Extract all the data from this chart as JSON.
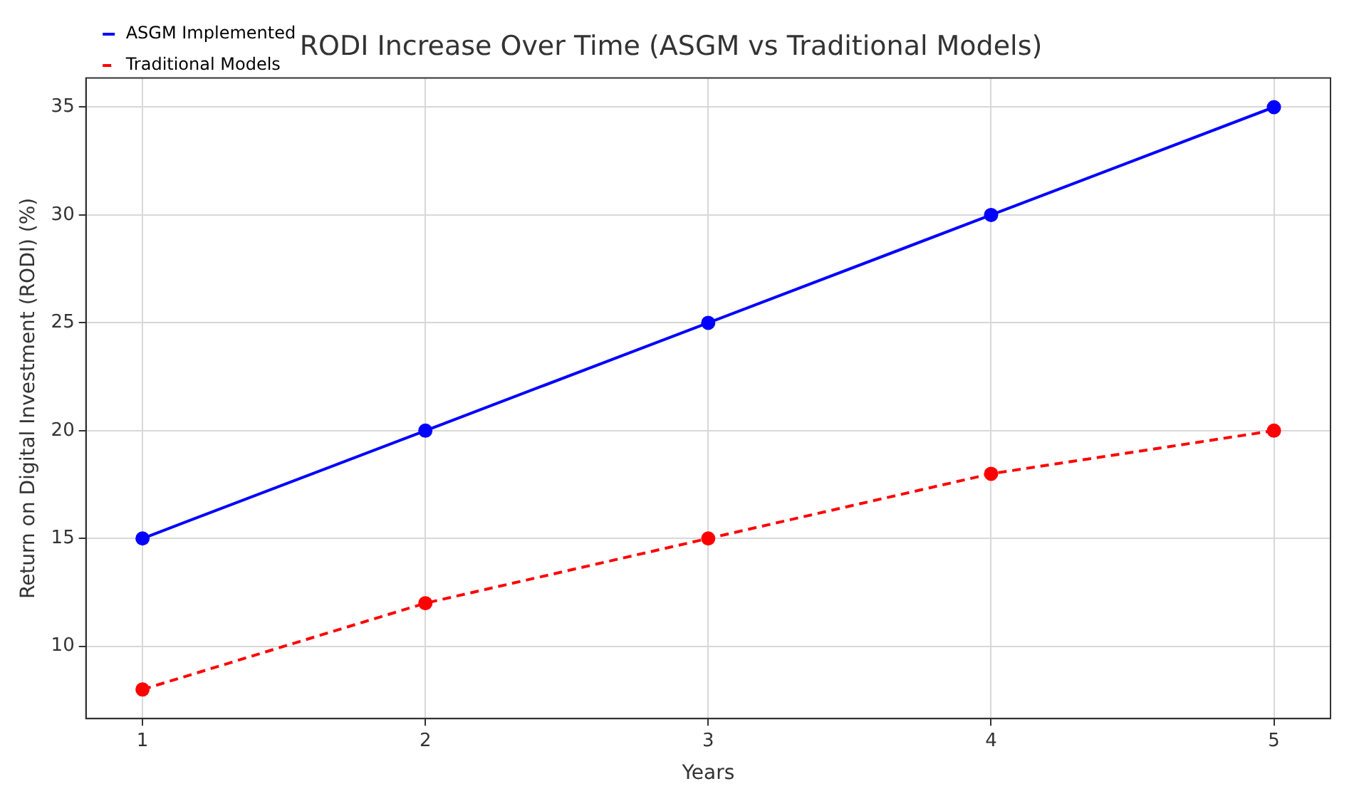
{
  "chart_data": {
    "type": "line",
    "title": "RODI Increase Over Time (ASGM vs Traditional Models)",
    "xlabel": "Years",
    "ylabel": "Return on Digital Investment (RODI) (%)",
    "x": [
      1,
      2,
      3,
      4,
      5
    ],
    "series": [
      {
        "name": "ASGM Implemented",
        "color": "#0000ff",
        "values": [
          15,
          20,
          25,
          30,
          35
        ],
        "line_style": "solid"
      },
      {
        "name": "Traditional Models",
        "color": "#ff0000",
        "values": [
          8,
          12,
          15,
          18,
          20
        ],
        "line_style": "dashed"
      }
    ],
    "xlim": [
      0.8,
      5.2
    ],
    "xticks": [
      1,
      2,
      3,
      4,
      5
    ],
    "ylim": [
      6.65,
      36.35
    ],
    "yticks": [
      10,
      15,
      20,
      25,
      30,
      35
    ],
    "grid": true,
    "legend": "top left",
    "marker": "circle"
  }
}
